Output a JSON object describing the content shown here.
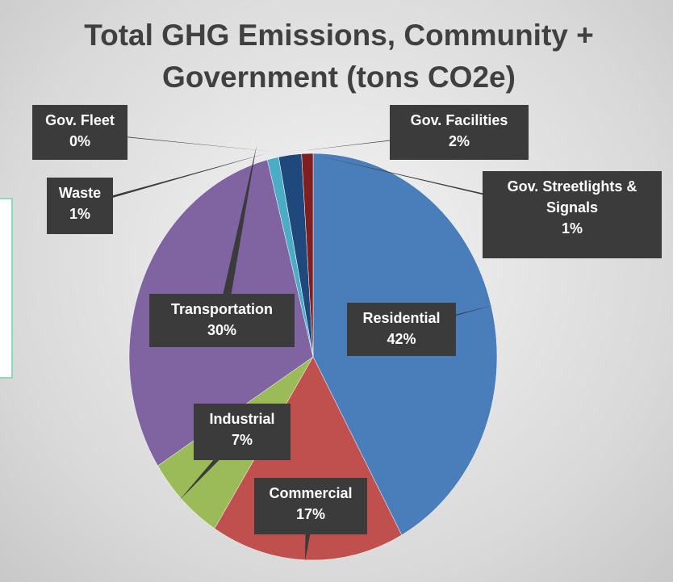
{
  "chart_data": {
    "type": "pie",
    "title": "Total GHG Emissions, Community + Government (tons CO2e)",
    "categories": [
      "Residential",
      "Commercial",
      "Industrial",
      "Transportation",
      "Waste",
      "Gov. Fleet",
      "Gov. Facilities",
      "Gov. Streetlights & Signals"
    ],
    "values": [
      42,
      17,
      7,
      30,
      1,
      0,
      2,
      1
    ],
    "value_labels": [
      "42%",
      "17%",
      "7%",
      "30%",
      "1%",
      "0%",
      "2%",
      "1%"
    ],
    "colors": [
      "#4a7ebb",
      "#c0504d",
      "#9bbb59",
      "#8064a2",
      "#4bacc6",
      "#f79646",
      "#1f497d",
      "#7f1f1f"
    ]
  }
}
